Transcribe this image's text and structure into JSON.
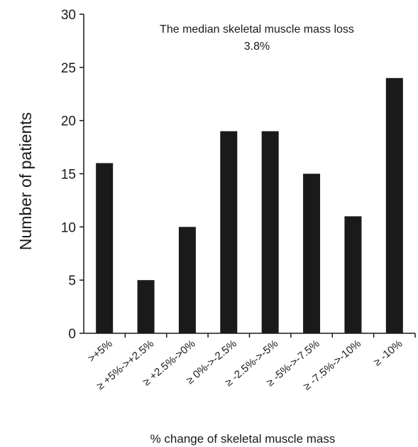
{
  "chart_data": {
    "type": "bar",
    "categories": [
      ">+5%",
      "≥ +5%->+2.5%",
      "≥ +2.5%->0%",
      "≥ 0%->-2.5%",
      "≥ -2.5%->-5%",
      "≥ -5%->-7.5%",
      "≥ -7.5%->-10%",
      "≥ -10%"
    ],
    "values": [
      16,
      5,
      10,
      19,
      19,
      15,
      11,
      24
    ],
    "title": "",
    "xlabel": "% change of skeletal muscle mass",
    "ylabel": "Number of patients",
    "ylim": [
      0,
      30
    ],
    "yticks": [
      0,
      5,
      10,
      15,
      20,
      25,
      30
    ],
    "annotation": {
      "line1": "The median skeletal muscle mass loss",
      "line2": "3.8%"
    },
    "bar_color": "#1a1a1a",
    "grid": false,
    "legend": "none"
  }
}
